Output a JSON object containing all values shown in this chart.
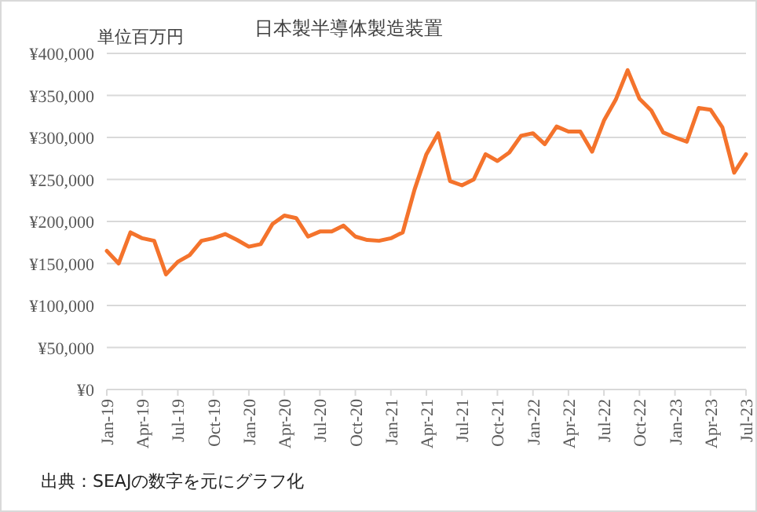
{
  "chart_data": {
    "type": "line",
    "title": "日本製半導体製造装置",
    "ylabel": "単位百万円",
    "annotations": [
      "出典：SEAJの数字を元にグラフ化"
    ],
    "x": [
      "2019-01",
      "2019-02",
      "2019-03",
      "2019-04",
      "2019-05",
      "2019-06",
      "2019-07",
      "2019-08",
      "2019-09",
      "2019-10",
      "2019-11",
      "2019-12",
      "2020-01",
      "2020-02",
      "2020-03",
      "2020-04",
      "2020-05",
      "2020-06",
      "2020-07",
      "2020-08",
      "2020-09",
      "2020-10",
      "2020-11",
      "2020-12",
      "2021-01",
      "2021-02",
      "2021-03",
      "2021-04",
      "2021-05",
      "2021-06",
      "2021-07",
      "2021-08",
      "2021-09",
      "2021-10",
      "2021-11",
      "2021-12",
      "2022-01",
      "2022-02",
      "2022-03",
      "2022-04",
      "2022-05",
      "2022-06",
      "2022-07",
      "2022-08",
      "2022-09",
      "2022-10",
      "2022-11",
      "2022-12",
      "2023-01",
      "2023-02",
      "2023-03",
      "2023-04",
      "2023-05",
      "2023-06",
      "2023-07"
    ],
    "series": [
      {
        "color": "#f4732c",
        "values": [
          165000,
          150000,
          187000,
          180000,
          177000,
          137000,
          152000,
          160000,
          177000,
          180000,
          185000,
          178000,
          170000,
          173000,
          197000,
          207000,
          204000,
          182000,
          188000,
          188000,
          195000,
          182000,
          178000,
          177000,
          180000,
          187000,
          238000,
          280000,
          305000,
          248000,
          243000,
          250000,
          280000,
          272000,
          282000,
          302000,
          305000,
          292000,
          313000,
          307000,
          307000,
          283000,
          320000,
          345000,
          380000,
          346000,
          332000,
          306000,
          300000,
          295000,
          335000,
          333000,
          312000,
          258000,
          280000
        ]
      }
    ],
    "xlim": [
      "2019-01",
      "2023-07"
    ],
    "xticks": [
      {
        "value": "2019-01",
        "label": "Jan-19"
      },
      {
        "value": "2019-04",
        "label": "Apr-19"
      },
      {
        "value": "2019-07",
        "label": "Jul-19"
      },
      {
        "value": "2019-10",
        "label": "Oct-19"
      },
      {
        "value": "2020-01",
        "label": "Jan-20"
      },
      {
        "value": "2020-04",
        "label": "Apr-20"
      },
      {
        "value": "2020-07",
        "label": "Jul-20"
      },
      {
        "value": "2020-10",
        "label": "Oct-20"
      },
      {
        "value": "2021-01",
        "label": "Jan-21"
      },
      {
        "value": "2021-04",
        "label": "Apr-21"
      },
      {
        "value": "2021-07",
        "label": "Jul-21"
      },
      {
        "value": "2021-10",
        "label": "Oct-21"
      },
      {
        "value": "2022-01",
        "label": "Jan-22"
      },
      {
        "value": "2022-04",
        "label": "Apr-22"
      },
      {
        "value": "2022-07",
        "label": "Jul-22"
      },
      {
        "value": "2022-10",
        "label": "Oct-22"
      },
      {
        "value": "2023-01",
        "label": "Jan-23"
      },
      {
        "value": "2023-04",
        "label": "Apr-23"
      },
      {
        "value": "2023-07",
        "label": "Jul-23"
      }
    ],
    "ylim": [
      0,
      400000
    ],
    "yticks": [
      {
        "value": 0,
        "label": "¥0"
      },
      {
        "value": 50000,
        "label": "¥50,000"
      },
      {
        "value": 100000,
        "label": "¥100,000"
      },
      {
        "value": 150000,
        "label": "¥150,000"
      },
      {
        "value": 200000,
        "label": "¥200,000"
      },
      {
        "value": 250000,
        "label": "¥250,000"
      },
      {
        "value": 300000,
        "label": "¥300,000"
      },
      {
        "value": 350000,
        "label": "¥350,000"
      },
      {
        "value": 400000,
        "label": "¥400,000"
      }
    ],
    "grid": "y",
    "marker": "none",
    "line_style": "solid"
  }
}
